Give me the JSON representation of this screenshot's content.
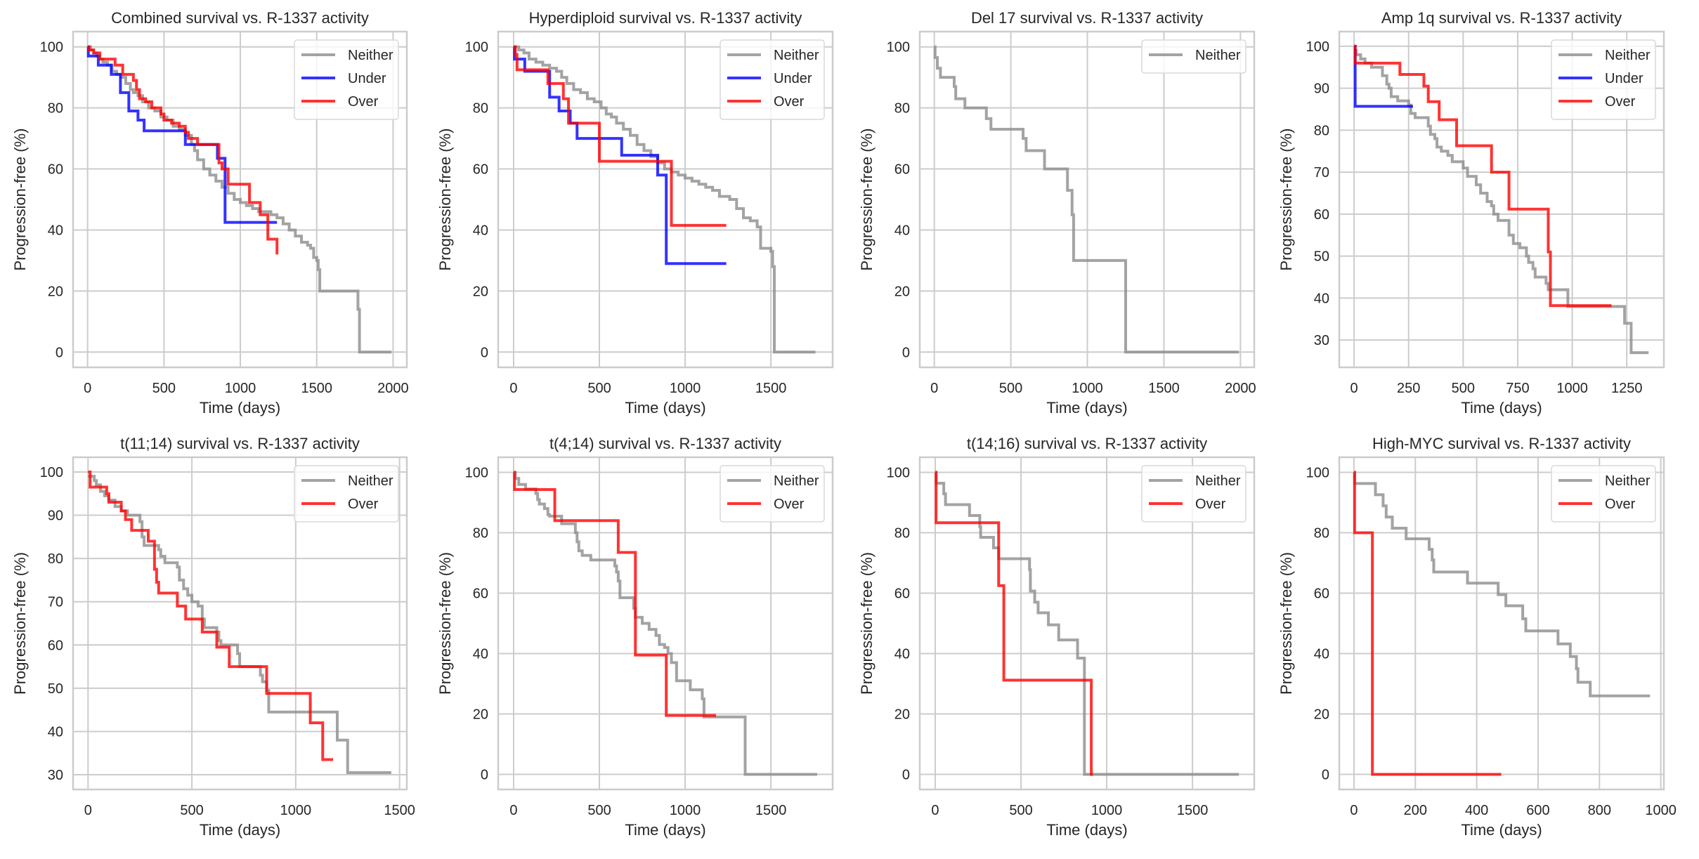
{
  "figure": {
    "colors": {
      "Neither": "#8c8c8c",
      "Under": "#0000ff",
      "Over": "#ff0000",
      "grid": "#cccccc",
      "frame": "#cccccc"
    }
  },
  "chart_data": [
    {
      "type": "line",
      "step": true,
      "title": "Combined survival vs. R-1337 activity",
      "xlabel": "Time (days)",
      "ylabel": "Progression-free (%)",
      "xlim": [
        -95,
        2090
      ],
      "ylim": [
        -5,
        105
      ],
      "xticks": [
        0,
        500,
        1000,
        1500,
        2000
      ],
      "yticks": [
        0,
        20,
        40,
        60,
        80,
        100
      ],
      "grid": true,
      "legend": {
        "position": "top-right",
        "entries": [
          "Neither",
          "Under",
          "Over"
        ]
      },
      "series": [
        {
          "name": "Neither",
          "x": [
            0,
            20,
            40,
            60,
            80,
            100,
            130,
            160,
            190,
            220,
            250,
            280,
            300,
            330,
            360,
            400,
            440,
            480,
            520,
            560,
            600,
            640,
            680,
            700,
            720,
            760,
            800,
            840,
            880,
            920,
            960,
            1000,
            1040,
            1080,
            1120,
            1160,
            1200,
            1240,
            1280,
            1320,
            1360,
            1400,
            1440,
            1460,
            1480,
            1500,
            1510,
            1520,
            1760,
            1770,
            1780,
            1990
          ],
          "y": [
            100,
            99,
            98,
            97,
            96,
            95,
            94,
            92,
            91,
            90,
            88,
            86,
            85,
            84,
            82,
            80,
            79,
            77,
            76,
            74,
            73,
            71,
            68,
            66,
            63,
            60,
            58,
            56,
            54,
            52,
            50,
            49,
            48,
            47,
            46,
            46,
            45,
            44,
            42,
            40,
            38,
            36,
            35,
            34,
            31,
            30,
            27,
            20,
            20,
            14,
            0,
            0
          ]
        },
        {
          "name": "Under",
          "x": [
            0,
            5,
            70,
            155,
            215,
            270,
            285,
            330,
            370,
            640,
            850,
            900,
            1240
          ],
          "y": [
            100,
            97,
            94,
            91,
            85,
            79,
            79,
            76,
            72.5,
            68,
            63.5,
            42.5,
            42.5
          ]
        },
        {
          "name": "Over",
          "x": [
            0,
            10,
            40,
            80,
            180,
            230,
            300,
            320,
            340,
            380,
            420,
            480,
            500,
            550,
            600,
            640,
            660,
            720,
            860,
            880,
            920,
            1060,
            1130,
            1180,
            1240
          ],
          "y": [
            100,
            99,
            98,
            96,
            94,
            91,
            89,
            86,
            83,
            82,
            80,
            78,
            76,
            75,
            74,
            72,
            70,
            68,
            62,
            60,
            55,
            49,
            45,
            37,
            32
          ]
        }
      ]
    },
    {
      "type": "line",
      "step": true,
      "title": "Hyperdiploid survival vs. R-1337 activity",
      "xlabel": "Time (days)",
      "ylabel": "Progression-free (%)",
      "xlim": [
        -90,
        1860
      ],
      "ylim": [
        -5,
        105
      ],
      "xticks": [
        0,
        500,
        1000,
        1500
      ],
      "yticks": [
        0,
        20,
        40,
        60,
        80,
        100
      ],
      "grid": true,
      "legend": {
        "position": "top-right",
        "entries": [
          "Neither",
          "Under",
          "Over"
        ]
      },
      "series": [
        {
          "name": "Neither",
          "x": [
            0,
            30,
            60,
            90,
            130,
            170,
            210,
            250,
            280,
            310,
            350,
            390,
            430,
            470,
            510,
            540,
            570,
            600,
            640,
            680,
            720,
            760,
            800,
            840,
            880,
            920,
            960,
            1000,
            1040,
            1080,
            1120,
            1160,
            1200,
            1260,
            1300,
            1340,
            1380,
            1420,
            1440,
            1500,
            1510,
            1520,
            1760
          ],
          "y": [
            100,
            99,
            98,
            96,
            95,
            94,
            93,
            92,
            90,
            88,
            86,
            85,
            83,
            82,
            80,
            78,
            77,
            75,
            73,
            71,
            68,
            66,
            64,
            62,
            60,
            59,
            58,
            57,
            56,
            55,
            54,
            53,
            51,
            50,
            47,
            44,
            43,
            41,
            34,
            33,
            28,
            0,
            0
          ]
        },
        {
          "name": "Under",
          "x": [
            0,
            5,
            65,
            210,
            265,
            330,
            370,
            630,
            840,
            890,
            1240
          ],
          "y": [
            100,
            96,
            92,
            83.5,
            79,
            75,
            70,
            64.5,
            58,
            29,
            29
          ]
        },
        {
          "name": "Over",
          "x": [
            0,
            10,
            20,
            200,
            290,
            320,
            500,
            920,
            1240
          ],
          "y": [
            100,
            97.5,
            92.5,
            88,
            83,
            75,
            62.5,
            41.5,
            41.5
          ]
        }
      ]
    },
    {
      "type": "line",
      "step": true,
      "title": "Del 17 survival vs. R-1337 activity",
      "xlabel": "Time (days)",
      "ylabel": "Progression-free (%)",
      "xlim": [
        -95,
        2090
      ],
      "ylim": [
        -5,
        105
      ],
      "xticks": [
        0,
        500,
        1000,
        1500,
        2000
      ],
      "yticks": [
        0,
        20,
        40,
        60,
        80,
        100
      ],
      "grid": true,
      "legend": {
        "position": "top-right",
        "entries": [
          "Neither"
        ]
      },
      "series": [
        {
          "name": "Neither",
          "x": [
            0,
            5,
            20,
            40,
            130,
            140,
            200,
            340,
            370,
            580,
            600,
            720,
            870,
            900,
            910,
            1250,
            1990
          ],
          "y": [
            100,
            96.5,
            93,
            90,
            87,
            83,
            80,
            76.5,
            73,
            70,
            66,
            60,
            53,
            45,
            30,
            0,
            0
          ]
        }
      ]
    },
    {
      "type": "line",
      "step": true,
      "title": "Amp 1q survival vs. R-1337 activity",
      "xlabel": "Time (days)",
      "ylabel": "Progression-free (%)",
      "xlim": [
        -68,
        1420
      ],
      "ylim": [
        23.5,
        103.5
      ],
      "xticks": [
        0,
        250,
        500,
        750,
        1000,
        1250
      ],
      "yticks": [
        30,
        40,
        50,
        60,
        70,
        80,
        90,
        100
      ],
      "grid": true,
      "legend": {
        "position": "top-right",
        "entries": [
          "Neither",
          "Under",
          "Over"
        ]
      },
      "series": [
        {
          "name": "Neither",
          "x": [
            0,
            10,
            30,
            50,
            80,
            130,
            150,
            160,
            170,
            200,
            250,
            260,
            280,
            340,
            350,
            370,
            380,
            400,
            430,
            450,
            500,
            520,
            560,
            580,
            610,
            630,
            640,
            660,
            700,
            710,
            730,
            760,
            790,
            800,
            820,
            830,
            880,
            890,
            980,
            1240,
            1250,
            1270,
            1350
          ],
          "y": [
            99,
            98,
            97,
            96,
            95,
            93,
            91,
            90,
            88,
            87,
            86,
            84,
            83,
            81,
            79,
            78,
            76,
            75,
            74,
            72.5,
            71,
            69,
            67,
            65,
            63,
            62,
            60,
            58.5,
            58.5,
            55,
            53,
            52,
            50,
            48.5,
            47,
            45,
            43.5,
            42,
            38,
            34,
            34,
            27,
            27
          ],
          "note": "final step to 27 at ~1250"
        },
        {
          "name": "Under",
          "x": [
            0,
            5,
            270
          ],
          "y": [
            100,
            85.7,
            85.7
          ]
        },
        {
          "name": "Over",
          "x": [
            0,
            5,
            210,
            320,
            340,
            390,
            470,
            630,
            710,
            890,
            900,
            1180
          ],
          "y": [
            100,
            96,
            93.3,
            90.5,
            86.8,
            82.5,
            76.3,
            70,
            61.2,
            51,
            38.2,
            38.2
          ]
        }
      ]
    },
    {
      "type": "line",
      "step": true,
      "title": "t(11;14) survival vs. R-1337 activity",
      "xlabel": "Time (days)",
      "ylabel": "Progression-free (%)",
      "xlim": [
        -72,
        1535
      ],
      "ylim": [
        26.6,
        103.4
      ],
      "xticks": [
        0,
        500,
        1000,
        1500
      ],
      "yticks": [
        30,
        40,
        50,
        60,
        70,
        80,
        90,
        100
      ],
      "grid": true,
      "legend": {
        "position": "top-right",
        "entries": [
          "Neither",
          "Over"
        ]
      },
      "series": [
        {
          "name": "Neither",
          "x": [
            0,
            30,
            40,
            60,
            80,
            100,
            130,
            160,
            190,
            250,
            260,
            270,
            340,
            350,
            370,
            430,
            440,
            460,
            480,
            500,
            530,
            550,
            560,
            620,
            630,
            640,
            720,
            730,
            830,
            840,
            860,
            870,
            1200,
            1250,
            1460
          ],
          "y": [
            99,
            98,
            97,
            95.5,
            94.5,
            93.5,
            92,
            91,
            90,
            88.5,
            85,
            83,
            82,
            80.5,
            79,
            78,
            75,
            73,
            71.5,
            70,
            69,
            66,
            64,
            63,
            61,
            60,
            58,
            55,
            53,
            51.5,
            49.5,
            44.5,
            38,
            30.5,
            30.5
          ],
          "note": "approximate"
        },
        {
          "name": "Over",
          "x": [
            0,
            10,
            90,
            100,
            160,
            180,
            210,
            290,
            320,
            330,
            340,
            430,
            470,
            550,
            620,
            680,
            860,
            1070,
            1130,
            1180
          ],
          "y": [
            100,
            96.5,
            95,
            93,
            91,
            89,
            86.5,
            84,
            77.5,
            74.5,
            72,
            69,
            66,
            63,
            59.5,
            55,
            48.8,
            42,
            33.5,
            33.5
          ]
        }
      ]
    },
    {
      "type": "line",
      "step": true,
      "title": "t(4;14) survival vs. R-1337 activity",
      "xlabel": "Time (days)",
      "ylabel": "Progression-free (%)",
      "xlim": [
        -90,
        1860
      ],
      "ylim": [
        -5,
        105
      ],
      "xticks": [
        0,
        500,
        1000,
        1500
      ],
      "yticks": [
        0,
        20,
        40,
        60,
        80,
        100
      ],
      "grid": true,
      "legend": {
        "position": "top-right",
        "entries": [
          "Neither",
          "Over"
        ]
      },
      "series": [
        {
          "name": "Neither",
          "x": [
            0,
            10,
            30,
            70,
            130,
            140,
            150,
            180,
            200,
            210,
            280,
            360,
            370,
            380,
            400,
            450,
            590,
            600,
            610,
            620,
            700,
            710,
            750,
            790,
            830,
            850,
            880,
            900,
            920,
            950,
            1030,
            1100,
            1110,
            1350,
            1770
          ],
          "y": [
            100,
            98,
            96,
            94.5,
            93,
            91,
            89.5,
            88,
            86,
            85.5,
            83,
            80,
            77,
            74,
            72.5,
            71,
            69,
            67,
            64,
            58.5,
            55,
            52,
            50,
            48,
            46,
            43,
            42,
            40,
            37,
            31,
            28,
            25,
            19,
            0,
            0
          ]
        },
        {
          "name": "Over",
          "x": [
            0,
            5,
            240,
            610,
            710,
            890,
            1180
          ],
          "y": [
            100,
            94.3,
            84,
            73.5,
            39.5,
            19.5,
            19.5
          ]
        }
      ]
    },
    {
      "type": "line",
      "step": true,
      "title": "t(14;16) survival vs. R-1337 activity",
      "xlabel": "Time (days)",
      "ylabel": "Progression-free (%)",
      "xlim": [
        -90,
        1860
      ],
      "ylim": [
        -5,
        105
      ],
      "xticks": [
        0,
        500,
        1000,
        1500
      ],
      "yticks": [
        0,
        20,
        40,
        60,
        80,
        100
      ],
      "grid": true,
      "legend": {
        "position": "top-right",
        "entries": [
          "Neither",
          "Over"
        ]
      },
      "series": [
        {
          "name": "Neither",
          "x": [
            0,
            5,
            50,
            60,
            200,
            260,
            265,
            340,
            370,
            550,
            555,
            580,
            600,
            660,
            720,
            830,
            860,
            870,
            1770
          ],
          "y": [
            100,
            96.4,
            92.9,
            89.3,
            85.7,
            82,
            78.5,
            75,
            71.4,
            67.8,
            60.7,
            57,
            53.5,
            49.5,
            44.5,
            38.5,
            38.5,
            0,
            0
          ]
        },
        {
          "name": "Over",
          "x": [
            0,
            5,
            370,
            385,
            400,
            910,
            920
          ],
          "y": [
            100,
            83.3,
            62.5,
            62.5,
            31.2,
            0,
            0
          ]
        }
      ]
    },
    {
      "type": "line",
      "step": true,
      "title": "High-MYC survival vs. R-1337 activity",
      "xlabel": "Time (days)",
      "ylabel": "Progression-free (%)",
      "xlim": [
        -48,
        1010
      ],
      "ylim": [
        -5,
        105
      ],
      "xticks": [
        0,
        200,
        400,
        600,
        800,
        1000
      ],
      "yticks": [
        0,
        20,
        40,
        60,
        80,
        100
      ],
      "grid": true,
      "legend": {
        "position": "top-right",
        "entries": [
          "Neither",
          "Over"
        ]
      },
      "series": [
        {
          "name": "Neither",
          "x": [
            0,
            2,
            70,
            95,
            105,
            125,
            170,
            245,
            255,
            260,
            370,
            470,
            495,
            550,
            555,
            560,
            665,
            705,
            725,
            730,
            770,
            965
          ],
          "y": [
            100,
            96.3,
            92.6,
            88.9,
            85.2,
            81.5,
            78,
            74.5,
            71,
            67,
            63.3,
            59.5,
            55.8,
            51.5,
            51.5,
            47.5,
            43.2,
            39,
            35,
            30.5,
            26,
            26
          ]
        },
        {
          "name": "Over",
          "x": [
            0,
            2,
            60,
            480
          ],
          "y": [
            100,
            80,
            0,
            0
          ]
        }
      ]
    }
  ]
}
